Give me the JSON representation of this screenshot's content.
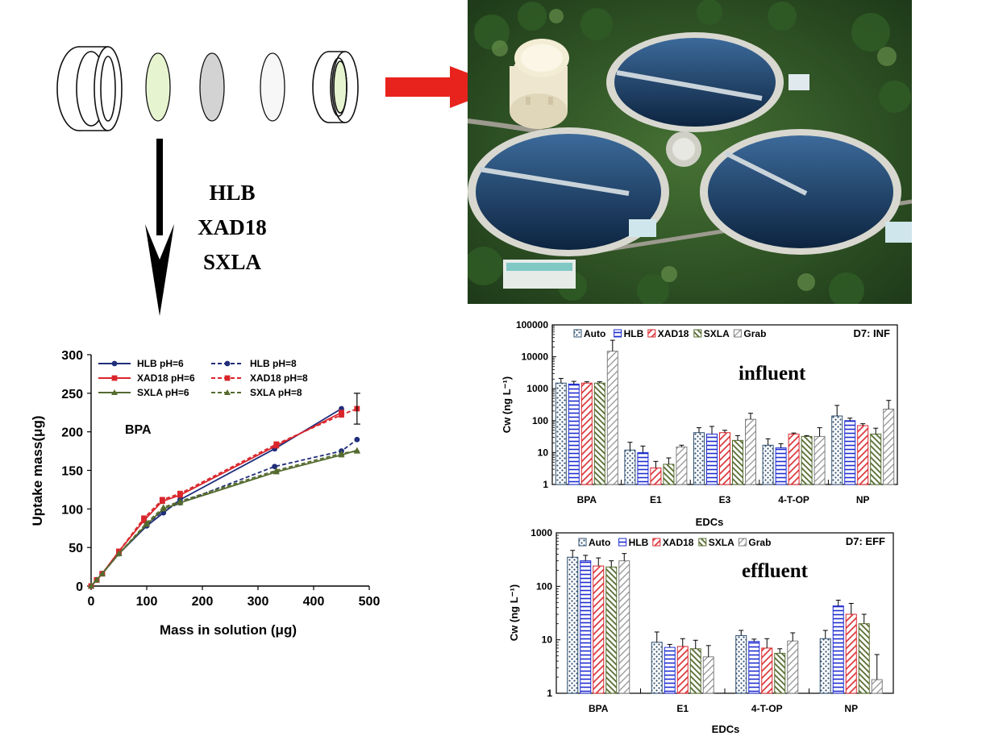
{
  "colors": {
    "hlb": "#1f2d7a",
    "xad18": "#d9262c",
    "sxla": "#556b2f",
    "arrow_red": "#e8231d",
    "grab": "#7f7f7f",
    "auto": "#2f4f6f",
    "membrane_green": "#e6f5d0",
    "membrane_grey": "#d3d3d3"
  },
  "sorbents": [
    "HLB",
    "XAD18",
    "SXLA"
  ],
  "uptake_chart": {
    "label": "BPA",
    "xlabel": "Mass in solution (μg)",
    "ylabel": "Uptake mass(μg)",
    "x_ticks": [
      "0",
      "100",
      "200",
      "300",
      "400",
      "500"
    ],
    "y_ticks": [
      "0",
      "50",
      "100",
      "150",
      "200",
      "250",
      "300"
    ],
    "legend": [
      "HLB pH=6",
      "HLB pH=8",
      "XAD18 pH=6",
      "XAD18 pH=8",
      "SXLA pH=6",
      "SXLA pH=8"
    ]
  },
  "influent_chart": {
    "tag": "D7: INF",
    "annotation": "influent",
    "xlabel": "EDCs",
    "ylabel": "Cw (ng L⁻¹)",
    "y_ticks": [
      "1",
      "10",
      "100",
      "1000",
      "10000",
      "100000"
    ],
    "legend": [
      "Auto",
      "HLB",
      "XAD18",
      "SXLA",
      "Grab"
    ],
    "categories": [
      "BPA",
      "E1",
      "E3",
      "4-T-OP",
      "NP"
    ]
  },
  "effluent_chart": {
    "tag": "D7: EFF",
    "annotation": "effluent",
    "xlabel": "EDCs",
    "ylabel": "Cw (ng L⁻¹)",
    "y_ticks": [
      "1",
      "10",
      "100",
      "1000"
    ],
    "legend": [
      "Auto",
      "HLB",
      "XAD18",
      "SXLA",
      "Grab"
    ],
    "categories": [
      "BPA",
      "E1",
      "4-T-OP",
      "NP"
    ]
  },
  "chart_data": [
    {
      "type": "line",
      "title": "",
      "annotation": "BPA",
      "xlabel": "Mass in solution (μg)",
      "ylabel": "Uptake mass(μg)",
      "xlim": [
        0,
        500
      ],
      "ylim": [
        0,
        300
      ],
      "legend_placement": "top-left",
      "series": [
        {
          "name": "HLB pH=6",
          "style": "solid",
          "x": [
            0,
            10,
            20,
            50,
            100,
            130,
            160,
            330,
            450
          ],
          "y": [
            0,
            8,
            16,
            42,
            78,
            95,
            112,
            178,
            230
          ]
        },
        {
          "name": "HLB pH=8",
          "style": "dashed",
          "x": [
            0,
            10,
            20,
            50,
            100,
            130,
            160,
            330,
            450,
            478
          ],
          "y": [
            0,
            8,
            16,
            42,
            80,
            98,
            108,
            155,
            175,
            190
          ]
        },
        {
          "name": "XAD18 pH=6",
          "style": "solid",
          "x": [
            0,
            10,
            20,
            50,
            95,
            128,
            160,
            333,
            450
          ],
          "y": [
            0,
            8,
            16,
            45,
            85,
            110,
            118,
            182,
            225
          ]
        },
        {
          "name": "XAD18 pH=8",
          "style": "dashed",
          "x": [
            0,
            10,
            20,
            50,
            95,
            128,
            160,
            333,
            450,
            478
          ],
          "y": [
            0,
            8,
            16,
            45,
            88,
            112,
            120,
            184,
            222,
            230
          ]
        },
        {
          "name": "SXLA pH=6",
          "style": "solid",
          "x": [
            0,
            10,
            20,
            50,
            100,
            130,
            160,
            333,
            450,
            478
          ],
          "y": [
            0,
            8,
            16,
            42,
            80,
            100,
            108,
            148,
            170,
            176
          ]
        },
        {
          "name": "SXLA pH=8",
          "style": "dashed",
          "x": [
            0,
            10,
            20,
            50,
            100,
            130,
            160,
            333,
            450,
            478
          ],
          "y": [
            0,
            8,
            16,
            42,
            82,
            102,
            110,
            150,
            172,
            175
          ]
        }
      ],
      "error_bars": {
        "XAD18 pH=8": {
          "x": 478,
          "y": 230,
          "err": 20
        }
      }
    },
    {
      "type": "bar",
      "title": "D7: INF",
      "annotation": "influent",
      "xlabel": "EDCs",
      "ylabel": "Cw (ng L⁻¹)",
      "yscale": "log",
      "ylim": [
        1,
        100000
      ],
      "categories": [
        "BPA",
        "E1",
        "E3",
        "4-T-OP",
        "NP"
      ],
      "series": [
        {
          "name": "Auto",
          "values": [
            1500,
            12,
            42,
            17,
            140
          ],
          "err": [
            600,
            9,
            18,
            10,
            160
          ]
        },
        {
          "name": "HLB",
          "values": [
            1400,
            10,
            38,
            14,
            100
          ],
          "err": [
            300,
            6,
            28,
            5,
            20
          ]
        },
        {
          "name": "XAD18",
          "values": [
            1500,
            3.3,
            42,
            38,
            70
          ],
          "err": [
            150,
            2,
            8,
            3,
            10
          ]
        },
        {
          "name": "SXLA",
          "values": [
            1500,
            4.3,
            24,
            32,
            38
          ],
          "err": [
            150,
            2.5,
            10,
            2,
            20
          ]
        },
        {
          "name": "Grab",
          "values": [
            15000,
            15,
            110,
            32,
            230
          ],
          "err": [
            18000,
            2,
            60,
            28,
            200
          ]
        }
      ]
    },
    {
      "type": "bar",
      "title": "D7: EFF",
      "annotation": "effluent",
      "xlabel": "EDCs",
      "ylabel": "Cw (ng L⁻¹)",
      "yscale": "log",
      "ylim": [
        1,
        1000
      ],
      "categories": [
        "BPA",
        "E1",
        "4-T-OP",
        "NP"
      ],
      "series": [
        {
          "name": "Auto",
          "values": [
            350,
            9,
            12,
            10.5
          ],
          "err": [
            120,
            5,
            3,
            4.5
          ]
        },
        {
          "name": "HLB",
          "values": [
            300,
            7.2,
            9.3,
            43
          ],
          "err": [
            80,
            1,
            1,
            12
          ]
        },
        {
          "name": "XAD18",
          "values": [
            240,
            7.5,
            7,
            30
          ],
          "err": [
            100,
            3,
            3.5,
            18
          ]
        },
        {
          "name": "SXLA",
          "values": [
            230,
            6.8,
            5.6,
            20
          ],
          "err": [
            70,
            3,
            1.2,
            10
          ]
        },
        {
          "name": "Grab",
          "values": [
            300,
            4.8,
            9.5,
            1.8
          ],
          "err": [
            110,
            3,
            4,
            3.5
          ]
        }
      ]
    }
  ]
}
